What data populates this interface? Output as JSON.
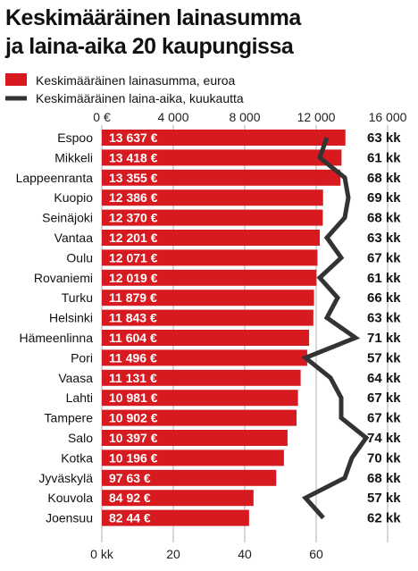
{
  "header": {
    "title_line1": "Keskimääräinen lainasumma",
    "title_line2": "ja laina-aika 20 kaupungissa"
  },
  "legend": {
    "bar_label": "Keskimääräinen lainasumma, euroa",
    "line_label": "Keskimääräinen laina-aika, kuukautta"
  },
  "colors": {
    "bar": "#d71a20",
    "line": "#333333",
    "grid": "#b0b0b0"
  },
  "chart_data": {
    "type": "bar",
    "orientation": "horizontal",
    "categories": [
      "Espoo",
      "Mikkeli",
      "Lappeenranta",
      "Kuopio",
      "Seinäjoki",
      "Vantaa",
      "Oulu",
      "Rovaniemi",
      "Turku",
      "Helsinki",
      "Hämeenlinna",
      "Pori",
      "Vaasa",
      "Lahti",
      "Tampere",
      "Salo",
      "Kotka",
      "Jyväskylä",
      "Kouvola",
      "Joensuu"
    ],
    "series": [
      {
        "name": "Keskimääräinen lainasumma, euroa",
        "type": "bar",
        "values": [
          13637,
          13418,
          13355,
          12386,
          12370,
          12201,
          12071,
          12019,
          11879,
          11843,
          11604,
          11496,
          11131,
          10981,
          10902,
          10397,
          10196,
          9763,
          8492,
          8244
        ],
        "labels": [
          "13 637 €",
          "13 418 €",
          "13 355 €",
          "12 386 €",
          "12 370 €",
          "12 201 €",
          "12 071 €",
          "12 019 €",
          "11 879 €",
          "11 843 €",
          "11 604 €",
          "11 496 €",
          "11 131 €",
          "10 981 €",
          "10 902 €",
          "10 397 €",
          "10 196 €",
          "97 63 €",
          "84 92 €",
          "82 44 €"
        ]
      },
      {
        "name": "Keskimääräinen laina-aika, kuukautta",
        "type": "line",
        "values": [
          63,
          61,
          68,
          69,
          68,
          63,
          67,
          61,
          66,
          63,
          71,
          57,
          64,
          67,
          67,
          74,
          70,
          68,
          57,
          62
        ],
        "labels": [
          "63 kk",
          "61 kk",
          "68 kk",
          "69 kk",
          "68 kk",
          "63 kk",
          "67 kk",
          "61 kk",
          "66 kk",
          "63 kk",
          "71 kk",
          "57 kk",
          "64 kk",
          "67 kk",
          "67 kk",
          "74 kk",
          "70 kk",
          "68 kk",
          "57 kk",
          "62 kk"
        ]
      }
    ],
    "top_axis": {
      "range": [
        0,
        16000
      ],
      "ticks": [
        "0 €",
        "4 000",
        "8 000",
        "12 000",
        "16 000"
      ],
      "tick_values": [
        0,
        4000,
        8000,
        12000,
        16000
      ]
    },
    "bottom_axis": {
      "range": [
        0,
        80
      ],
      "ticks": [
        "0 kk",
        "20",
        "40",
        "60"
      ],
      "tick_values": [
        0,
        20,
        40,
        60
      ]
    },
    "grid": true
  }
}
